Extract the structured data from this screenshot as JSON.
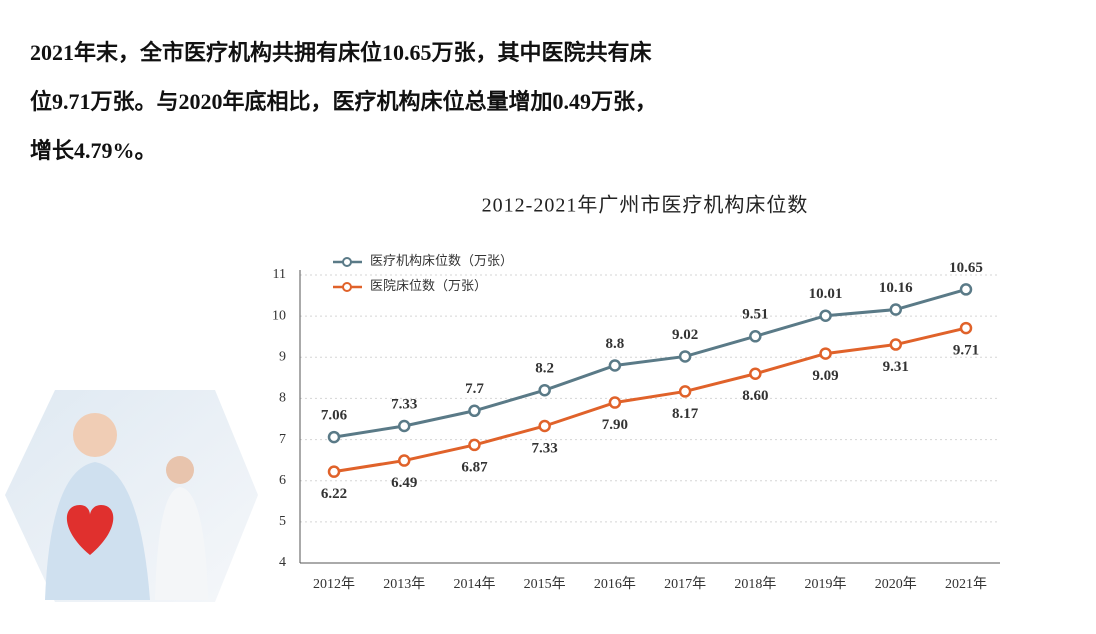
{
  "paragraph": [
    "2021年末，全市医疗机构共拥有床位10.65万张，其中医院共有床",
    "位9.71万张。与2020年底相比，医疗机构床位总量增加0.49万张，",
    "增长4.79%。"
  ],
  "chart_data": {
    "type": "line",
    "title": "2012-2021年广州市医疗机构床位数",
    "categories": [
      "2012年",
      "2013年",
      "2014年",
      "2015年",
      "2016年",
      "2017年",
      "2018年",
      "2019年",
      "2020年",
      "2021年"
    ],
    "series": [
      {
        "name": "医疗机构床位数（万张）",
        "color": "#5a7a87",
        "values": [
          7.06,
          7.33,
          7.7,
          8.2,
          8.8,
          9.02,
          9.51,
          10.01,
          10.16,
          10.65
        ]
      },
      {
        "name": "医院床位数（万张）",
        "color": "#e0622a",
        "values": [
          6.22,
          6.49,
          6.87,
          7.33,
          7.9,
          8.17,
          8.6,
          9.09,
          9.31,
          9.71
        ],
        "value_labels": [
          "6.22",
          "6.49",
          "6.87",
          "7.33",
          "7.90",
          "8.17",
          "8.60",
          "9.09",
          "9.31",
          "9.71"
        ]
      }
    ],
    "ylim": [
      4,
      11
    ],
    "yticks": [
      4,
      5,
      6,
      7,
      8,
      9,
      10,
      11
    ],
    "grid": true
  }
}
